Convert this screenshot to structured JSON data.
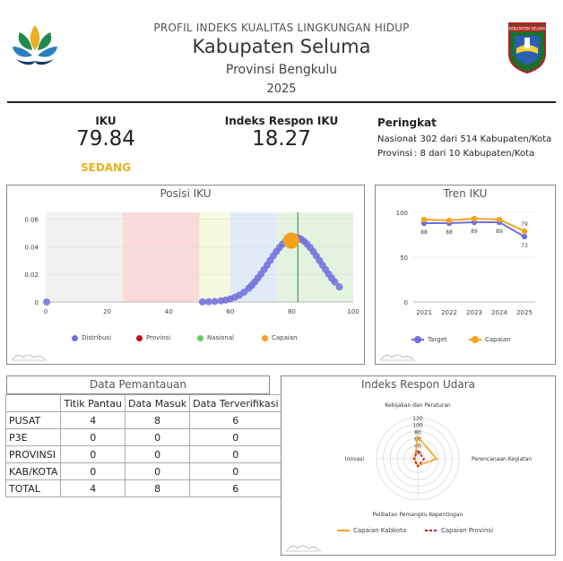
{
  "header": {
    "kicker": "PROFIL INDEKS KUALITAS LINGKUNGAN HIDUP",
    "title": "Kabupaten Seluma",
    "province": "Provinsi Bengkulu",
    "year": "2025",
    "emblem_text": "KABUPATEN SELUMA"
  },
  "kpis": {
    "iku_label": "IKU",
    "iku_value": "79.84",
    "iku_category": "SEDANG",
    "respon_label": "Indeks Respon IKU",
    "respon_value": "18.27",
    "rank_label": "Peringkat",
    "rank_nasional_key": "Nasional",
    "rank_nasional_value": ": 302 dari 514 Kabupaten/Kota",
    "rank_provinsi_key": "Provinsi",
    "rank_provinsi_value": ": 8 dari 10 Kabupaten/Kota"
  },
  "colors": {
    "accent_yellow": "#e8b020",
    "distribusi": "#6f6fdc",
    "provinsi": "#c0111f",
    "nasional": "#5ecf5e",
    "capaian": "#f5a21b",
    "target": "#6f6fdc"
  },
  "chart_data": [
    {
      "title": "Posisi IKU",
      "type": "scatter",
      "xlim": [
        0,
        100
      ],
      "ylim": [
        0,
        0.065
      ],
      "xticks": [
        "0",
        "20",
        "40",
        "60",
        "80",
        "100"
      ],
      "yticks": [
        "0",
        "0.02",
        "0.04",
        "0.06"
      ],
      "bands": [
        {
          "from": 0,
          "to": 25,
          "color": "#f1f1f1"
        },
        {
          "from": 25,
          "to": 50,
          "color": "#fbdada"
        },
        {
          "from": 50,
          "to": 60,
          "color": "#f7f9df"
        },
        {
          "from": 60,
          "to": 75,
          "color": "#e0ebf7"
        },
        {
          "from": 75,
          "to": 100,
          "color": "#e3f3df"
        }
      ],
      "distribusi_x": [
        0.3,
        51,
        53,
        55,
        57,
        58.5,
        60,
        61.5,
        63,
        64.5,
        66,
        67,
        68,
        69,
        70,
        71,
        72,
        73,
        74,
        75,
        76,
        77,
        78,
        79,
        80,
        81,
        82,
        83,
        84,
        85,
        86,
        87,
        88,
        89,
        90,
        91,
        92,
        93,
        94,
        95.5
      ],
      "mean": 81,
      "sd": 8.5,
      "nasional_line_x": 82,
      "capaian": {
        "x": 79.84,
        "y": 0.0445
      },
      "legend": [
        "Distribusi",
        "Provinsi",
        "Nasional",
        "Capaian"
      ]
    },
    {
      "title": "Tren IKU",
      "type": "line",
      "categories": [
        "2021",
        "2022",
        "2023",
        "2024",
        "2025"
      ],
      "ylim": [
        0,
        100
      ],
      "yticks": [
        "0",
        "50",
        "100"
      ],
      "series": [
        {
          "name": "Target",
          "values": [
            88,
            88,
            89,
            89,
            73
          ]
        },
        {
          "name": "Capaian",
          "values": [
            92,
            91,
            93,
            92,
            79
          ]
        }
      ],
      "labels_capaian": [
        "",
        "",
        "",
        "",
        "79"
      ],
      "labels_target": [
        "88",
        "88",
        "89",
        "89",
        "73"
      ]
    },
    {
      "title": "Indeks Respon Udara",
      "type": "radar",
      "axes": [
        "Kebijakan dan Peraturan",
        "Perencanaan Kegiatan",
        "Pelibatan Pemangku Kepentingan",
        "Inovasi"
      ],
      "rticks": [
        "20",
        "40",
        "60",
        "80",
        "100",
        "120"
      ],
      "rmax": 120,
      "series": [
        {
          "name": "Capaian Kabkota",
          "values": [
            65,
            55,
            20,
            8
          ]
        },
        {
          "name": "Capaian Provinsi",
          "values": [
            22,
            18,
            22,
            12
          ]
        }
      ]
    }
  ],
  "table": {
    "title": "Data Pemantauan",
    "headers": [
      "",
      "Titik Pantau",
      "Data Masuk",
      "Data Terverifikasi"
    ],
    "rows": [
      [
        "PUSAT",
        "4",
        "8",
        "6"
      ],
      [
        "P3E",
        "0",
        "0",
        "0"
      ],
      [
        "PROVINSI",
        "0",
        "0",
        "0"
      ],
      [
        "KAB/KOTA",
        "0",
        "0",
        "0"
      ],
      [
        "TOTAL",
        "4",
        "8",
        "6"
      ]
    ]
  }
}
